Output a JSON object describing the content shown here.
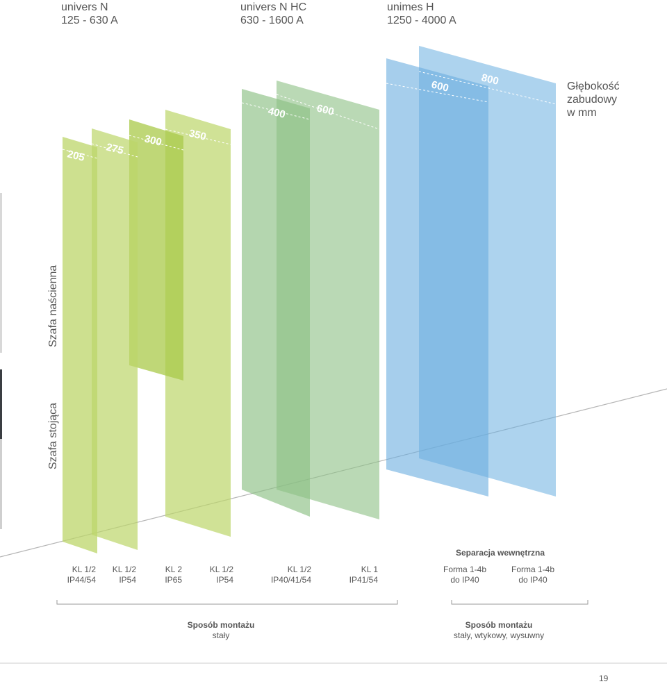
{
  "products": [
    {
      "name": "univers N",
      "range": "125 - 630 A"
    },
    {
      "name": "univers N HC",
      "range": "630 - 1600 A"
    },
    {
      "name": "unimes H",
      "range": "1250 - 4000 A"
    }
  ],
  "depth_title": [
    "Głębokość",
    "zabudowy",
    "w mm"
  ],
  "side_labels": {
    "wall": "Szafa naścienna",
    "standing": "Szafa stojąca"
  },
  "panels": [
    {
      "depth": "205",
      "color": "#bcd66a"
    },
    {
      "depth": "275",
      "color": "#bcd66a"
    },
    {
      "depth": "300",
      "color": "#a9c94a"
    },
    {
      "depth": "350",
      "color": "#bcd66a"
    },
    {
      "depth": "400",
      "color": "#8cc084"
    },
    {
      "depth": "600",
      "color": "#8cc084"
    },
    {
      "depth": "600",
      "color": "#6aaee0"
    },
    {
      "depth": "800",
      "color": "#6aaee0"
    }
  ],
  "separation_title": "Separacja wewnętrzna",
  "ratings": [
    {
      "line1": "KL 1/2",
      "line2": "IP44/54"
    },
    {
      "line1": "KL 1/2",
      "line2": "IP54"
    },
    {
      "line1": "KL 2",
      "line2": "IP65"
    },
    {
      "line1": "KL 1/2",
      "line2": "IP54"
    },
    {
      "line1": "KL 1/2",
      "line2": "IP40/41/54"
    },
    {
      "line1": "KL 1",
      "line2": "IP41/54"
    },
    {
      "line1": "Forma 1-4b",
      "line2": "do IP40"
    },
    {
      "line1": "Forma 1-4b",
      "line2": "do IP40"
    }
  ],
  "mounting": [
    {
      "title": "Sposób montażu",
      "value": "stały"
    },
    {
      "title": "Sposób montażu",
      "value": "stały, wtykowy, wysuwny"
    }
  ],
  "page_number": "19"
}
